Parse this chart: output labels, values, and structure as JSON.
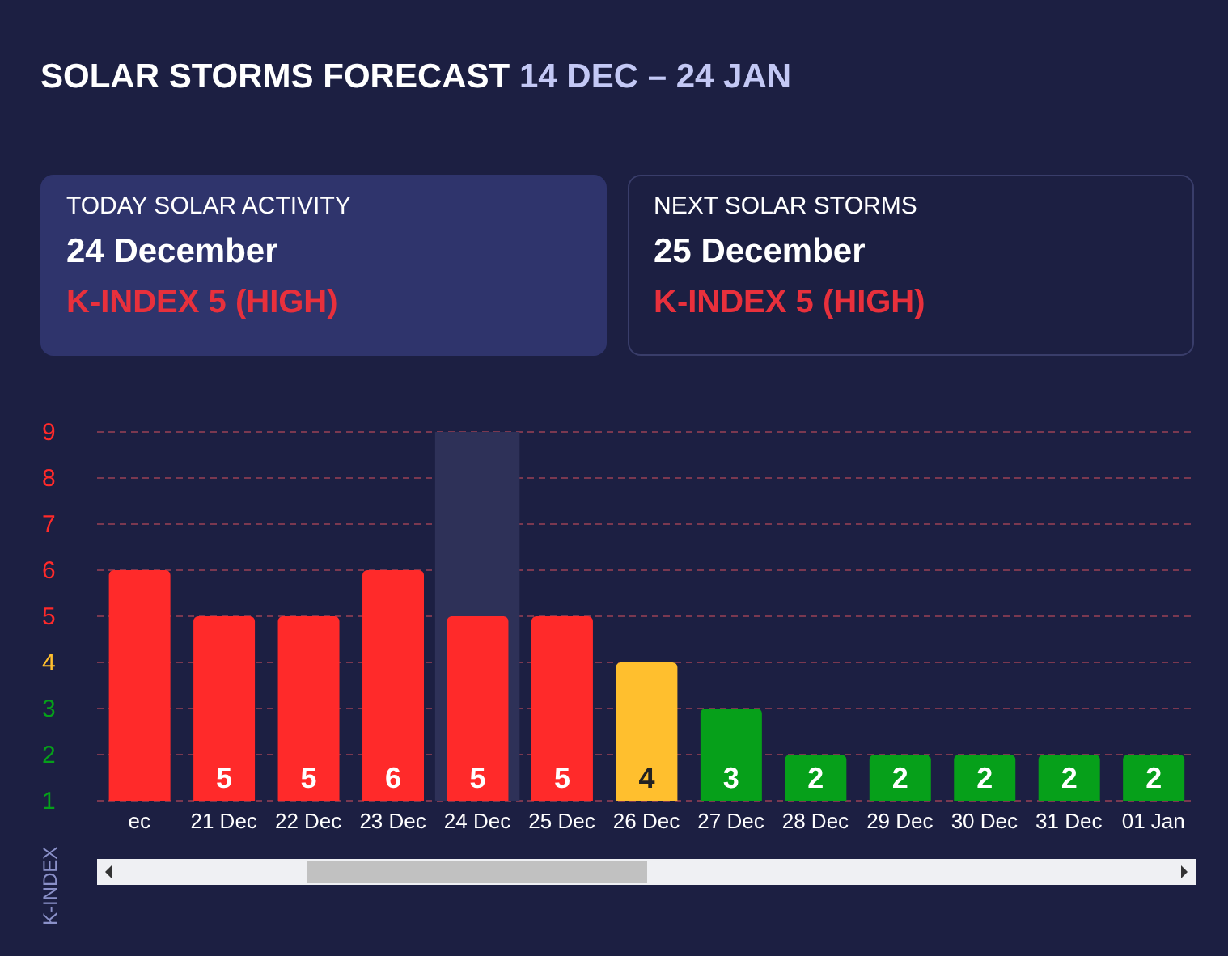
{
  "chart_data": {
    "type": "bar",
    "title": "SOLAR STORMS FORECAST",
    "subtitle": "14 DEC – 24 JAN",
    "ylabel": "K-INDEX",
    "annotations": [
      "TODAY SOLAR ACTIVITY",
      "24 December",
      "K-INDEX 5 (HIGH)",
      "NEXT SOLAR STORMS",
      "25 December",
      "K-INDEX 5 (HIGH)"
    ],
    "categories": [
      "ec",
      "21 Dec",
      "22 Dec",
      "23 Dec",
      "24 Dec",
      "25 Dec",
      "26 Dec",
      "27 Dec",
      "28 Dec",
      "29 Dec",
      "30 Dec",
      "31 Dec",
      "01 Jan"
    ],
    "values": [
      6,
      5,
      5,
      6,
      5,
      5,
      4,
      3,
      2,
      2,
      2,
      2,
      2
    ],
    "value_labels": [
      null,
      "5",
      "5",
      "6",
      "5",
      "5",
      "4",
      "3",
      "2",
      "2",
      "2",
      "2",
      "2"
    ],
    "colors": [
      "#ff2a2a",
      "#ff2a2a",
      "#ff2a2a",
      "#ff2a2a",
      "#ff2a2a",
      "#ff2a2a",
      "#ffbf2e",
      "#06a01a",
      "#06a01a",
      "#06a01a",
      "#06a01a",
      "#06a01a",
      "#06a01a"
    ],
    "ylim": [
      1,
      9
    ],
    "yticks": [
      1,
      2,
      3,
      4,
      5,
      6,
      7,
      8,
      9
    ],
    "grid": "y",
    "bands": [
      {
        "axis": "x",
        "from": "24 Dec",
        "to": "24 Dec",
        "color": "#2e3158"
      }
    ]
  }
}
